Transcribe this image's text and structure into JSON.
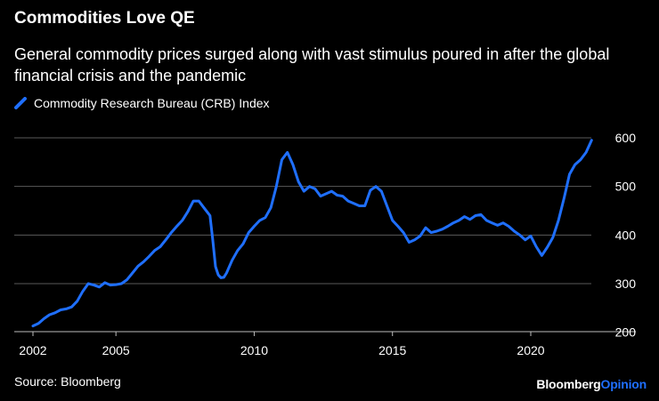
{
  "chart_data": {
    "type": "line",
    "title": "Commodities Love QE",
    "subtitle": "General commodity prices surged along with vast stimulus poured in after the global financial crisis and the pandemic",
    "xlabel": "",
    "ylabel": "",
    "xlim": [
      2002,
      2022.25
    ],
    "ylim": [
      200,
      600
    ],
    "x_ticks": [
      2002,
      2005,
      2010,
      2015,
      2020
    ],
    "x_tick_labels": [
      "2002",
      "2005",
      "2010",
      "2015",
      "2020"
    ],
    "y_ticks": [
      200,
      300,
      400,
      500,
      600
    ],
    "y_tick_labels": [
      "200",
      "300",
      "400",
      "500",
      "600"
    ],
    "grid": true,
    "legend": "top-left",
    "series": [
      {
        "name": "Commodity Research Bureau (CRB) Index",
        "color": "#1f6fff",
        "x": [
          2002.0,
          2002.2,
          2002.4,
          2002.6,
          2002.8,
          2003.0,
          2003.2,
          2003.4,
          2003.6,
          2003.8,
          2004.0,
          2004.2,
          2004.4,
          2004.6,
          2004.8,
          2005.0,
          2005.2,
          2005.4,
          2005.6,
          2005.8,
          2006.0,
          2006.2,
          2006.4,
          2006.6,
          2006.8,
          2007.0,
          2007.2,
          2007.4,
          2007.6,
          2007.8,
          2008.0,
          2008.2,
          2008.4,
          2008.5,
          2008.6,
          2008.7,
          2008.8,
          2008.9,
          2009.0,
          2009.2,
          2009.4,
          2009.6,
          2009.8,
          2010.0,
          2010.2,
          2010.4,
          2010.6,
          2010.8,
          2011.0,
          2011.2,
          2011.4,
          2011.6,
          2011.8,
          2012.0,
          2012.2,
          2012.4,
          2012.6,
          2012.8,
          2013.0,
          2013.2,
          2013.4,
          2013.6,
          2013.8,
          2014.0,
          2014.2,
          2014.4,
          2014.6,
          2014.8,
          2015.0,
          2015.2,
          2015.4,
          2015.6,
          2015.8,
          2016.0,
          2016.2,
          2016.4,
          2016.6,
          2016.8,
          2017.0,
          2017.2,
          2017.4,
          2017.6,
          2017.8,
          2018.0,
          2018.2,
          2018.4,
          2018.6,
          2018.8,
          2019.0,
          2019.2,
          2019.4,
          2019.6,
          2019.8,
          2020.0,
          2020.2,
          2020.4,
          2020.6,
          2020.8,
          2021.0,
          2021.2,
          2021.4,
          2021.6,
          2021.8,
          2022.0,
          2022.2
        ],
        "values": [
          213,
          218,
          228,
          236,
          240,
          246,
          248,
          252,
          264,
          284,
          300,
          297,
          293,
          302,
          297,
          298,
          300,
          308,
          322,
          336,
          345,
          356,
          368,
          376,
          390,
          405,
          418,
          430,
          448,
          470,
          470,
          455,
          440,
          390,
          335,
          318,
          312,
          313,
          322,
          348,
          368,
          382,
          405,
          418,
          430,
          436,
          456,
          500,
          555,
          570,
          545,
          510,
          490,
          500,
          495,
          480,
          485,
          490,
          482,
          480,
          470,
          465,
          460,
          460,
          492,
          500,
          490,
          460,
          430,
          418,
          405,
          385,
          390,
          398,
          415,
          405,
          408,
          412,
          418,
          425,
          430,
          438,
          432,
          440,
          442,
          430,
          425,
          420,
          425,
          418,
          408,
          400,
          390,
          398,
          376,
          358,
          375,
          395,
          430,
          475,
          525,
          545,
          555,
          570,
          595
        ]
      }
    ]
  },
  "footer": {
    "source": "Source: Bloomberg",
    "brand_part1": "Bloomberg",
    "brand_part2": "Opinion"
  }
}
